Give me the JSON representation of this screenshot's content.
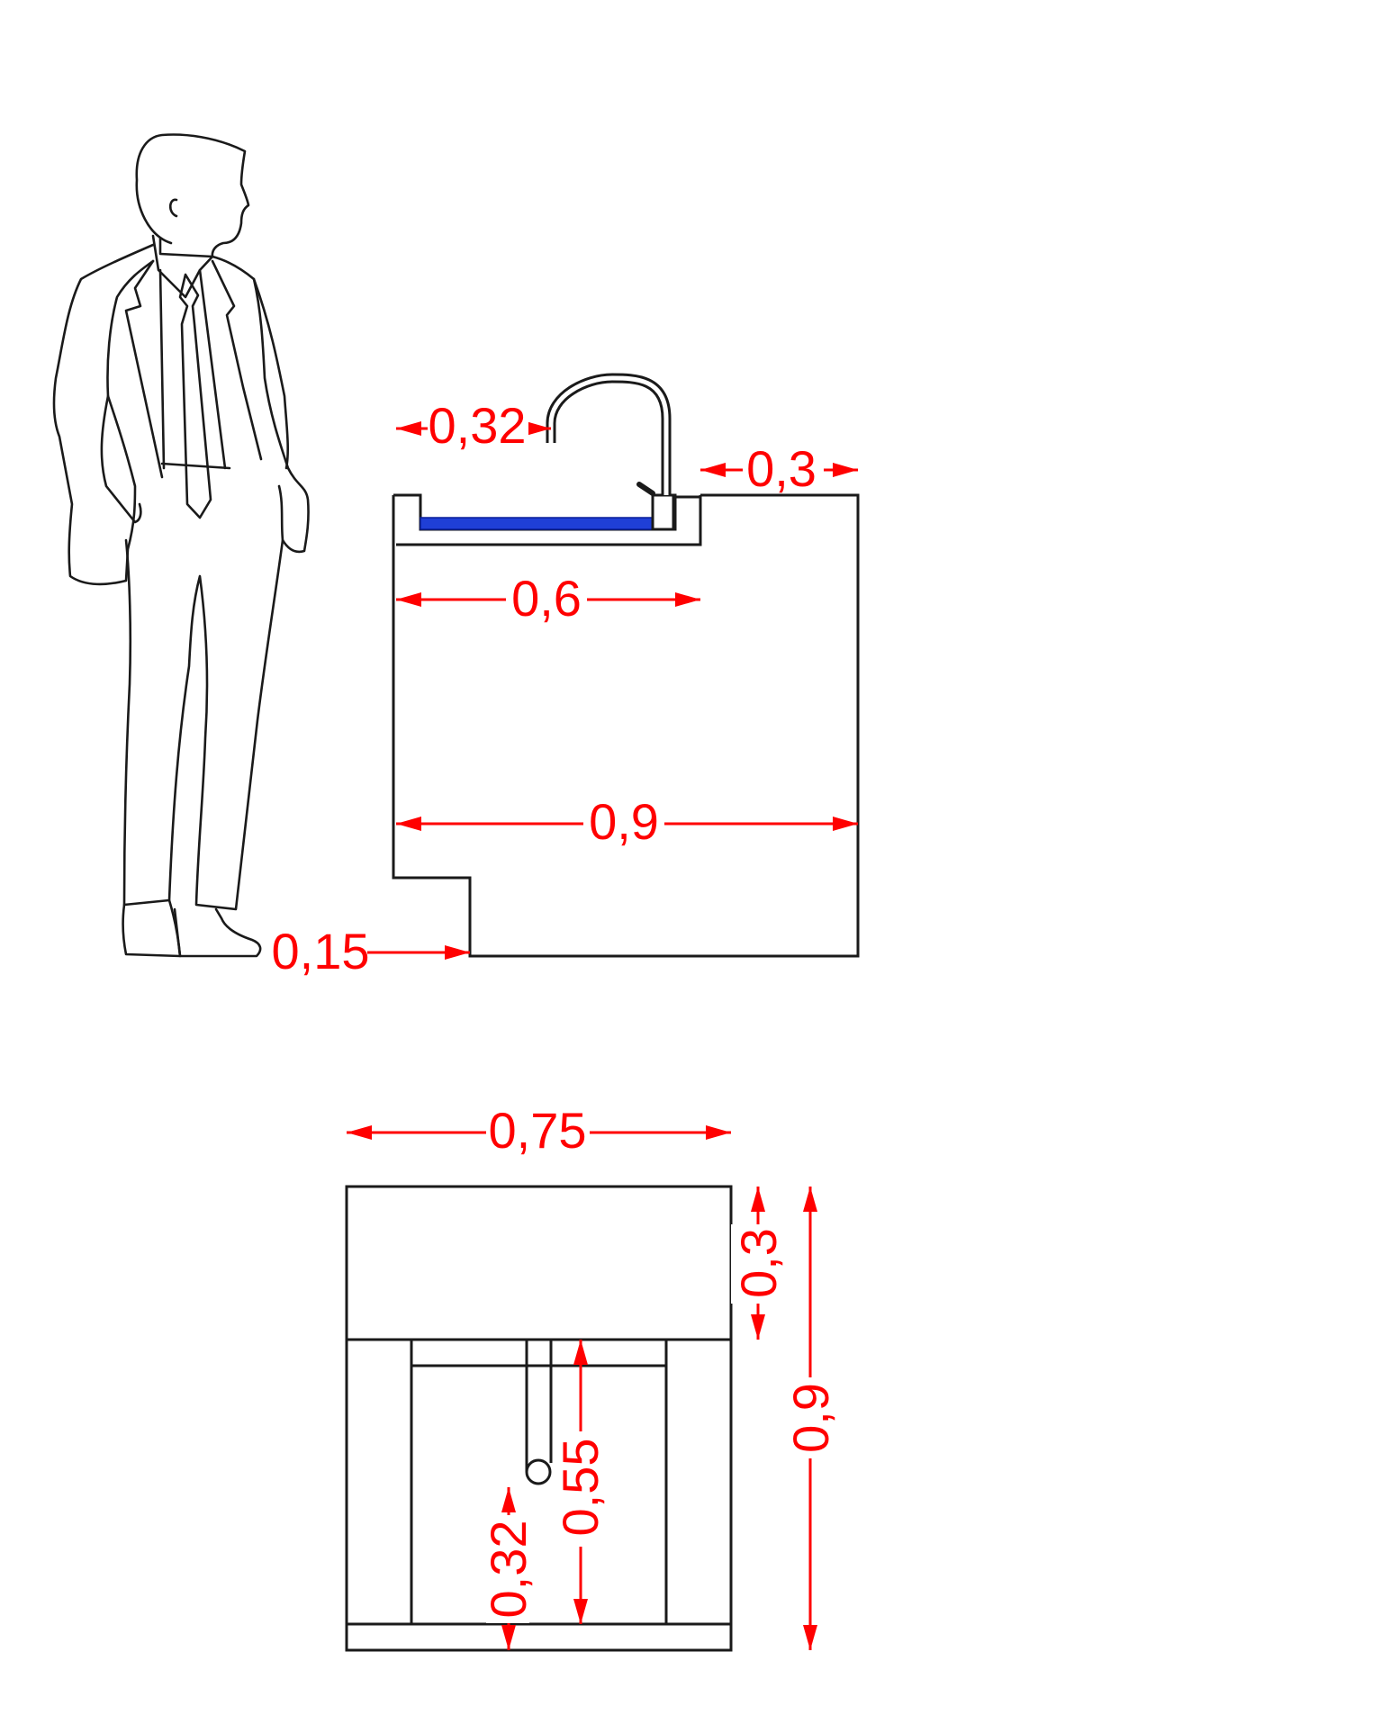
{
  "colors": {
    "line": "#1a1a1a",
    "dimension": "#ff0000",
    "water": "#1f3fd6"
  },
  "dimensions": {
    "faucet_reach": "0,32",
    "rear_ledge": "0,3",
    "sink_depth": "0,6",
    "cabinet_depth": "0,9",
    "toe_kick": "0,15",
    "front_width": "0,75",
    "front_top_panel": "0,3",
    "front_height": "0,9",
    "drain_height": "0,55",
    "pipe_height": "0,32"
  }
}
